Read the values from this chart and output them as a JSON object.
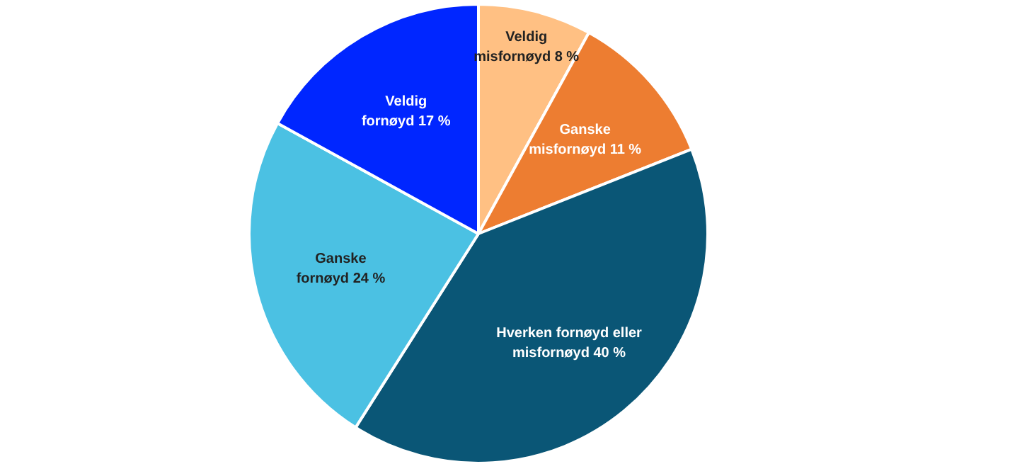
{
  "chart_data": {
    "type": "pie",
    "categories": [
      "Veldig misfornøyd",
      "Ganske misfornøyd",
      "Hverken fornøyd eller misfornøyd",
      "Ganske fornøyd",
      "Veldig fornøyd"
    ],
    "values": [
      8,
      11,
      40,
      24,
      17
    ],
    "colors": [
      "#ffc083",
      "#ed7d31",
      "#0a5676",
      "#4bc1e3",
      "#0026ff"
    ],
    "value_labels": [
      "8 %",
      "11 %",
      "40 %",
      "24 %",
      "17 %"
    ],
    "legend": false
  }
}
